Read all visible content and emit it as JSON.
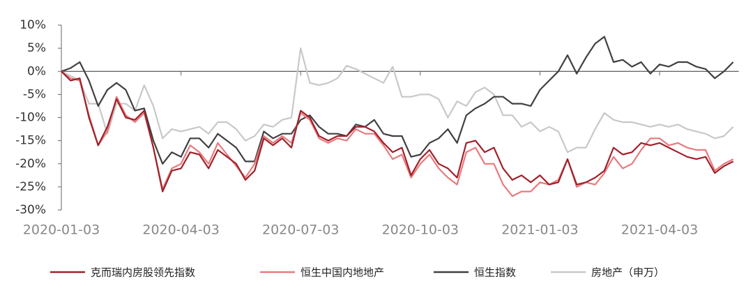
{
  "chart_data": {
    "type": "line",
    "categories": [
      "2020-01-03",
      null,
      null,
      null,
      null,
      null,
      null,
      null,
      null,
      null,
      null,
      null,
      null,
      "2020-04-03",
      null,
      null,
      null,
      null,
      null,
      null,
      null,
      null,
      null,
      null,
      null,
      null,
      "2020-07-03",
      null,
      null,
      null,
      null,
      null,
      null,
      null,
      null,
      null,
      null,
      null,
      null,
      "2020-10-03",
      null,
      null,
      null,
      null,
      null,
      null,
      null,
      null,
      null,
      null,
      null,
      null,
      "2021-01-03",
      null,
      null,
      null,
      null,
      null,
      null,
      null,
      null,
      null,
      null,
      null,
      null,
      "2021-04-03",
      null,
      null,
      null,
      null,
      null,
      null,
      null,
      null
    ],
    "series": [
      {
        "name": "克而瑞内房股领先指数",
        "color": "#a0202a",
        "values": [
          0,
          -2,
          -1.5,
          -10,
          -16,
          -12,
          -6,
          -10,
          -10.5,
          -8.5,
          -16.5,
          -26,
          -21.5,
          -21,
          -17.5,
          -18,
          -21,
          -17,
          -18.5,
          -20,
          -23.5,
          -21.5,
          -14.5,
          -16,
          -14.5,
          -16.5,
          -8.5,
          -10,
          -14,
          -15,
          -14,
          -14,
          -12,
          -12,
          -13,
          -15.5,
          -17.5,
          -16.5,
          -22.5,
          -19,
          -17,
          -20,
          -21,
          -23,
          -15.5,
          -15,
          -17.5,
          -16.5,
          -21,
          -23.5,
          -22.5,
          -24,
          -22.5,
          -24.5,
          -24,
          -19,
          -24.5,
          -24,
          -23,
          -21.5,
          -16.5,
          -18,
          -17.5,
          -15.5,
          -16,
          -15.5,
          -16.5,
          -17.5,
          -18.5,
          -19,
          -18.5,
          -22,
          -20.5,
          -19.5
        ]
      },
      {
        "name": "恒生中国内地地产",
        "color": "#e87a7e",
        "values": [
          0,
          -1.5,
          -2,
          -9.5,
          -16,
          -13,
          -5.5,
          -9.5,
          -11,
          -9,
          -16.5,
          -25.5,
          -21,
          -20,
          -16,
          -17.5,
          -20,
          -15.5,
          -18,
          -20.5,
          -23,
          -20,
          -14,
          -15.5,
          -14,
          -15.5,
          -9,
          -10.5,
          -14.5,
          -15.5,
          -14.5,
          -15,
          -12.5,
          -13.5,
          -13.5,
          -16,
          -19,
          -18,
          -23,
          -20,
          -18,
          -21,
          -23,
          -24.5,
          -17.5,
          -16.5,
          -20,
          -20,
          -24.5,
          -27,
          -26,
          -26,
          -24,
          -24.5,
          -23.5,
          -19,
          -25,
          -24,
          -24.5,
          -22,
          -18.5,
          -21,
          -20,
          -17,
          -14.5,
          -14.5,
          -16,
          -15.5,
          -16.5,
          -17,
          -17,
          -21.5,
          -20,
          -19
        ]
      },
      {
        "name": "恒生指数",
        "color": "#404040",
        "values": [
          0,
          0.7,
          2,
          -2,
          -7.5,
          -4,
          -2.5,
          -4,
          -8.5,
          -8,
          -15,
          -20,
          -17.5,
          -18.5,
          -14.5,
          -14.5,
          -16.5,
          -13.5,
          -15,
          -16.5,
          -19.5,
          -19.5,
          -13,
          -14.5,
          -13.5,
          -13.5,
          -10.5,
          -9.5,
          -12,
          -13.5,
          -13.5,
          -14,
          -11.5,
          -12,
          -10.5,
          -13.5,
          -14,
          -14,
          -18.5,
          -18,
          -15.5,
          -14.5,
          -12.5,
          -15.5,
          -9.5,
          -8,
          -7,
          -5.5,
          -5.5,
          -7,
          -7,
          -7.5,
          -4,
          -2,
          0,
          3.5,
          -0.5,
          3,
          6,
          7.5,
          2,
          2.5,
          1,
          2,
          -0.5,
          1.5,
          1,
          2,
          2,
          1,
          0.5,
          -1.5,
          0,
          2
        ]
      },
      {
        "name": "房地产（申万）",
        "color": "#c8c8c8",
        "values": [
          0,
          -1,
          -2,
          -7,
          -7,
          -13.5,
          -7,
          -7,
          -8.5,
          -3,
          -7.5,
          -14.5,
          -12.5,
          -13,
          -12.5,
          -12,
          -13.5,
          -11,
          -11,
          -12.5,
          -15,
          -14,
          -11.5,
          -12,
          -10.5,
          -10,
          5,
          -2.5,
          -3,
          -2.5,
          -1.5,
          1.2,
          0.5,
          -0.5,
          -1.5,
          -2.5,
          1,
          -5.5,
          -5.5,
          -5,
          -5,
          -6,
          -10,
          -6.5,
          -7.5,
          -4.5,
          -3.5,
          -5,
          -9.5,
          -9.5,
          -12,
          -11,
          -13,
          -12,
          -13,
          -17.5,
          -16.5,
          -16.5,
          -12.5,
          -9,
          -10.5,
          -11,
          -11,
          -11.5,
          -12,
          -11.5,
          -12,
          -11.5,
          -12.5,
          -13,
          -13.5,
          -14.5,
          -14,
          -12
        ]
      }
    ],
    "ylim": [
      -30,
      10
    ],
    "yticks": [
      {
        "value": -30,
        "label": "-30%"
      },
      {
        "value": -25,
        "label": "-25%"
      },
      {
        "value": -20,
        "label": "-20%"
      },
      {
        "value": -15,
        "label": "-15%"
      },
      {
        "value": -10,
        "label": "-10%"
      },
      {
        "value": -5,
        "label": "-5%"
      },
      {
        "value": 0,
        "label": "0%"
      },
      {
        "value": 5,
        "label": "5%"
      },
      {
        "value": 10,
        "label": "10%"
      }
    ],
    "legend": "bottom"
  }
}
